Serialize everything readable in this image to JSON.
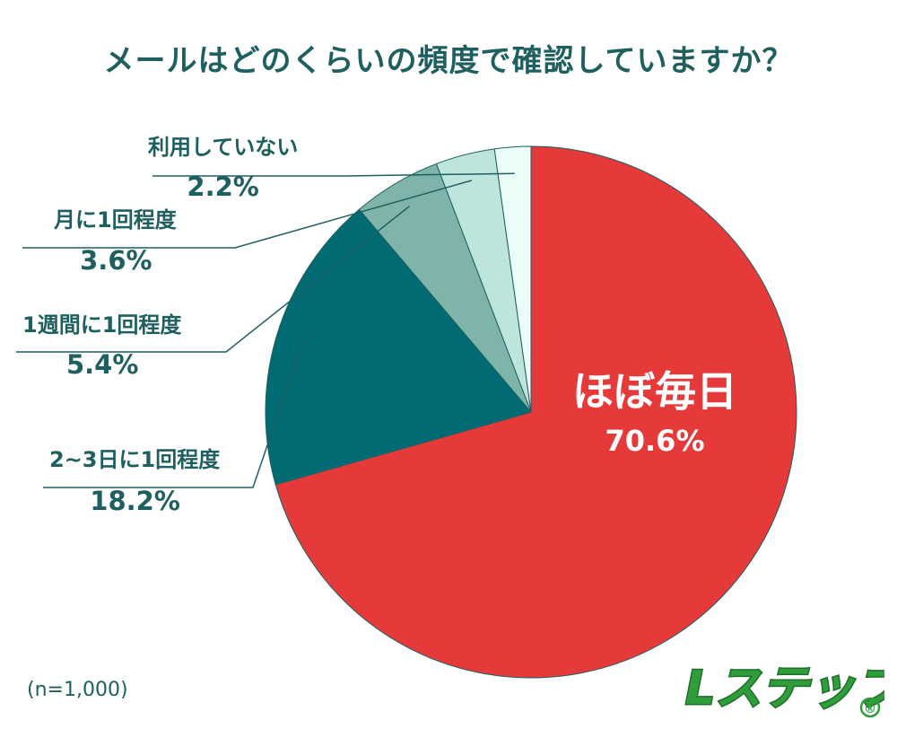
{
  "title": "メールはどのくらいの頻度で確認していますか？",
  "note": "(n=1,000)",
  "logo": {
    "text": "Lステップ",
    "registered": "®",
    "color_text": "#2e9d3a",
    "color_outline": "#1f6e2a"
  },
  "colors": {
    "text": "#1e5f60",
    "leader": "#1e5f60",
    "slice_edge": "#1e5f60"
  },
  "chart_data": {
    "type": "pie",
    "title": "メールはどのくらいの頻度で確認していますか？",
    "start": "top, clockwise",
    "slices": [
      {
        "label": "ほぼ毎日",
        "value": 70.6,
        "display": "70.6%",
        "color": "#e63a3a",
        "label_inside": true
      },
      {
        "label": "2~3日に1回程度",
        "value": 18.2,
        "display": "18.2%",
        "color": "#006b73",
        "label_inside": false
      },
      {
        "label": "1週間に1回程度",
        "value": 5.4,
        "display": "5.4%",
        "color": "#7fb4aa",
        "label_inside": false
      },
      {
        "label": "月に1回程度",
        "value": 3.6,
        "display": "3.6%",
        "color": "#bde5db",
        "label_inside": false
      },
      {
        "label": "利用していない",
        "value": 2.2,
        "display": "2.2%",
        "color": "#eafdf9",
        "label_inside": false
      }
    ]
  }
}
